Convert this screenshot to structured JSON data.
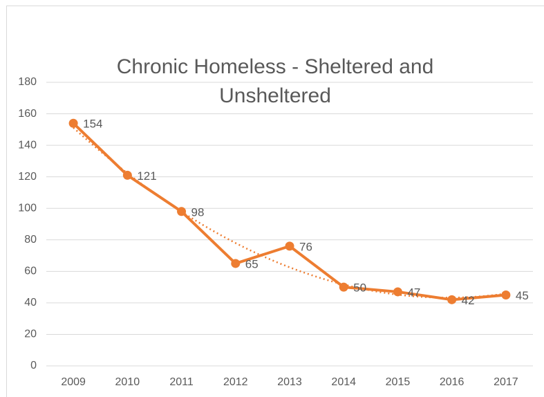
{
  "chart_data": {
    "type": "line",
    "title": "Chronic Homeless - Sheltered and Unsheltered",
    "categories": [
      "2009",
      "2010",
      "2011",
      "2012",
      "2013",
      "2014",
      "2015",
      "2016",
      "2017"
    ],
    "values": [
      154,
      121,
      98,
      65,
      76,
      50,
      47,
      42,
      45
    ],
    "color": "#ed7d31",
    "ylim": [
      0,
      180
    ],
    "yticks": [
      0,
      20,
      40,
      60,
      80,
      100,
      120,
      140,
      160,
      180
    ],
    "grid": true,
    "trendline": "polynomial",
    "data_labels": true
  }
}
